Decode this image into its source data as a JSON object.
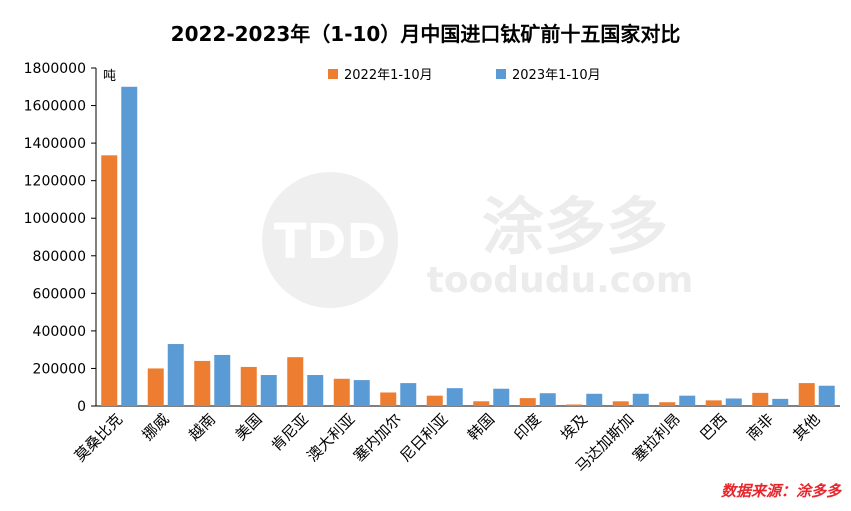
{
  "chart_data": {
    "type": "bar",
    "title": "2022-2023年（1-10）月中国进口钛矿前十五国家对比",
    "unit_label": "吨",
    "ylim": [
      0,
      1800000
    ],
    "yticks": [
      0,
      200000,
      400000,
      600000,
      800000,
      1000000,
      1200000,
      1400000,
      1600000,
      1800000
    ],
    "grid": false,
    "legend_position": "top",
    "categories": [
      "莫桑比克",
      "挪威",
      "越南",
      "美国",
      "肯尼亚",
      "澳大利亚",
      "塞内加尔",
      "尼日利亚",
      "韩国",
      "印度",
      "埃及",
      "马达加斯加",
      "塞拉利昂",
      "巴西",
      "南非",
      "其他"
    ],
    "series": [
      {
        "name": "2022年1-10月",
        "color": "#ed7d31",
        "values": [
          1335000,
          200000,
          240000,
          208000,
          260000,
          145000,
          72000,
          55000,
          25000,
          42000,
          8000,
          25000,
          20000,
          30000,
          70000,
          122000
        ]
      },
      {
        "name": "2023年1-10月",
        "color": "#5b9bd5",
        "values": [
          1700000,
          330000,
          272000,
          165000,
          165000,
          138000,
          122000,
          95000,
          92000,
          68000,
          65000,
          65000,
          55000,
          40000,
          38000,
          108000
        ]
      }
    ]
  },
  "watermark": {
    "logo_text": "TDD",
    "brand": "涂多多",
    "url": "toodudu.com"
  },
  "source_text": "数据来源：涂多多"
}
